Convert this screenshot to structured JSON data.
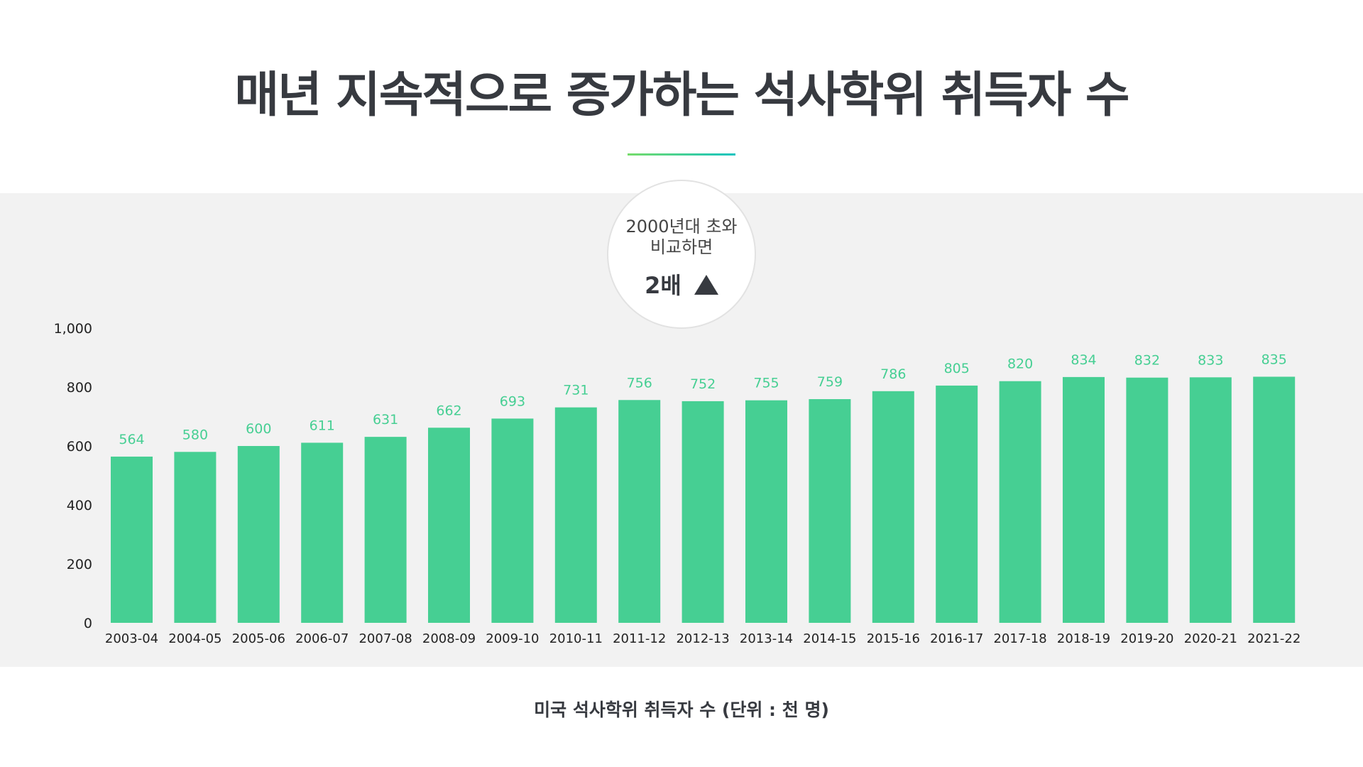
{
  "header": {
    "title": "매년 지속적으로 증가하는 석사학위 취득자 수"
  },
  "callout": {
    "line1": "2000년대 초와",
    "line2": "비교하면",
    "highlight": "2배",
    "icon": "up-triangle-icon"
  },
  "caption": "미국 석사학위 취득자 수 (단위 : 천 명)",
  "colors": {
    "bar": "#46cf93",
    "label": "#46cf93",
    "band": "#f2f2f2",
    "text": "#373a40"
  },
  "chart_data": {
    "type": "bar",
    "title": "미국 석사학위 취득자 수 (단위 : 천 명)",
    "xlabel": "",
    "ylabel": "",
    "ylim": [
      0,
      1000
    ],
    "yticks": [
      0,
      200,
      400,
      600,
      800,
      1000
    ],
    "ytick_labels": [
      "0",
      "200",
      "400",
      "600",
      "800",
      "1,000"
    ],
    "grid": false,
    "categories": [
      "2003-04",
      "2004-05",
      "2005-06",
      "2006-07",
      "2007-08",
      "2008-09",
      "2009-10",
      "2010-11",
      "2011-12",
      "2012-13",
      "2013-14",
      "2014-15",
      "2015-16",
      "2016-17",
      "2017-18",
      "2018-19",
      "2019-20",
      "2020-21",
      "2021-22"
    ],
    "values": [
      564,
      580,
      600,
      611,
      631,
      662,
      693,
      731,
      756,
      752,
      755,
      759,
      786,
      805,
      820,
      834,
      832,
      833,
      835
    ]
  }
}
